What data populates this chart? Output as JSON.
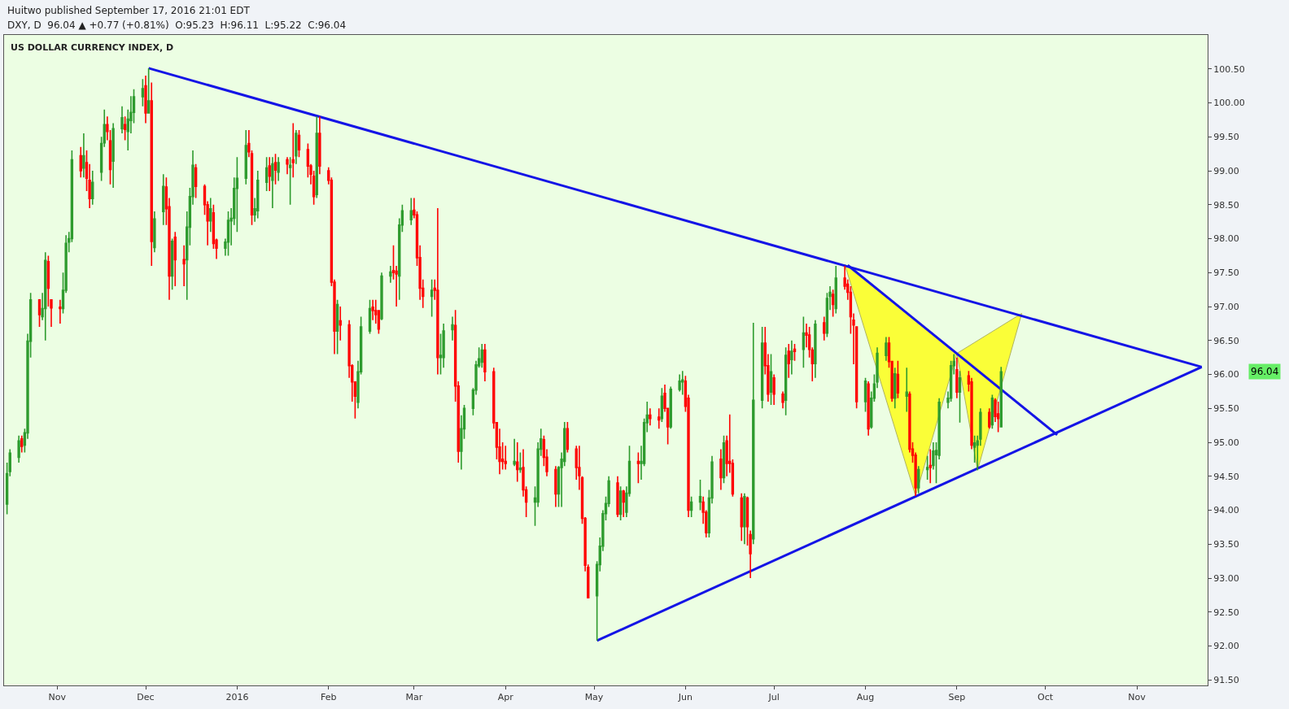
{
  "chart_data": {
    "type": "candlestick",
    "title": "US DOLLAR CURRENCY INDEX, D",
    "annotations": [
      "Huitwo published September 17, 2016 21:01 EDT",
      "DXY, D  96.04 ▲ +0.77 (+0.81%)  O:95.23  H:96.11  L:95.22  C:96.04",
      "96.04"
    ],
    "colors": [
      "#2e9b2e",
      "#2e9b2e",
      "#2e9b2e",
      "#ff0000",
      "#2e9b2e",
      "#2e9b2e",
      "#2e9b2e",
      "#ff0000",
      "#2e9b2e",
      "#2e9b2e",
      "#ff0000",
      "#ff0000",
      "#ff0000",
      "#2e9b2e",
      "#2e9b2e",
      "#2e9b2e",
      "#2e9b2e",
      "#ff0000",
      "#2e9b2e",
      "#ff0000",
      "#ff0000",
      "#2e9b2e",
      "#2e9b2e",
      "#2e9b2e",
      "#ff0000",
      "#ff0000",
      "#2e9b2e",
      "#2e9b2e",
      "#ff0000",
      "#2e9b2e",
      "#2e9b2e",
      "#2e9b2e",
      "#2e9b2e",
      "#ff0000",
      "#2e9b2e",
      "#ff0000",
      "#2e9b2e",
      "#2e9b2e",
      "#ff0000",
      "#ff0000",
      "#2e9b2e",
      "#ff0000",
      "#ff0000",
      "#2e9b2e",
      "#2e9b2e",
      "#2e9b2e",
      "#ff0000",
      "#ff0000",
      "#ff0000",
      "#2e9b2e",
      "#ff0000",
      "#ff0000",
      "#2e9b2e",
      "#2e9b2e",
      "#2e9b2e",
      "#2e9b2e",
      "#2e9b2e",
      "#2e9b2e",
      "#ff0000",
      "#ff0000",
      "#2e9b2e",
      "#2e9b2e",
      "#2e9b2e",
      "#ff0000",
      "#2e9b2e",
      "#ff0000",
      "#2e9b2e",
      "#ff0000",
      "#2e9b2e",
      "#ff0000",
      "#2e9b2e",
      "#ff0000",
      "#ff0000",
      "#ff0000",
      "#ff0000",
      "#2e9b2e",
      "#ff0000",
      "#ff0000",
      "#ff0000",
      "#ff0000",
      "#2e9b2e",
      "#ff0000",
      "#ff0000",
      "#ff0000",
      "#ff0000",
      "#2e9b2e",
      "#2e9b2e",
      "#2e9b2e",
      "#ff0000",
      "#ff0000",
      "#ff0000",
      "#2e9b2e",
      "#2e9b2e",
      "#ff0000",
      "#ff0000",
      "#2e9b2e",
      "#2e9b2e",
      "#2e9b2e",
      "#ff0000",
      "#ff0000",
      "#ff0000",
      "#ff0000",
      "#2e9b2e",
      "#ff0000",
      "#ff0000",
      "#2e9b2e",
      "#2e9b2e",
      "#2e9b2e",
      "#ff0000",
      "#ff0000",
      "#2e9b2e",
      "#2e9b2e",
      "#2e9b2e",
      "#2e9b2e",
      "#2e9b2e",
      "#2e9b2e",
      "#ff0000",
      "#ff0000",
      "#ff0000",
      "#ff0000",
      "#ff0000",
      "#ff0000",
      "#2e9b2e",
      "#ff0000",
      "#2e9b2e",
      "#ff0000",
      "#ff0000",
      "#2e9b2e",
      "#2e9b2e",
      "#2e9b2e",
      "#ff0000",
      "#ff0000",
      "#ff0000",
      "#2e9b2e",
      "#2e9b2e",
      "#2e9b2e",
      "#ff0000",
      "#ff0000",
      "#ff0000",
      "#ff0000",
      "#ff0000",
      "#ff0000",
      "#2e9b2e",
      "#2e9b2e",
      "#2e9b2e",
      "#2e9b2e",
      "#2e9b2e",
      "#ff0000",
      "#2e9b2e",
      "#ff0000",
      "#2e9b2e",
      "#2e9b2e",
      "#ff0000",
      "#2e9b2e",
      "#2e9b2e",
      "#2e9b2e",
      "#ff0000",
      "#ff0000",
      "#2e9b2e",
      "#ff0000",
      "#ff0000",
      "#2e9b2e",
      "#2e9b2e",
      "#2e9b2e",
      "#ff0000",
      "#ff0000",
      "#2e9b2e",
      "#2e9b2e",
      "#ff0000",
      "#ff0000",
      "#2e9b2e",
      "#2e9b2e",
      "#ff0000",
      "#2e9b2e",
      "#ff0000",
      "#ff0000",
      "#ff0000",
      "#ff0000",
      "#2e9b2e",
      "#ff0000",
      "#ff0000",
      "#2e9b2e",
      "#2e9b2e",
      "#ff0000",
      "#ff0000",
      "#2e9b2e",
      "#ff0000",
      "#ff0000",
      "#2e9b2e",
      "#ff0000",
      "#2e9b2e",
      "#ff0000",
      "#2e9b2e",
      "#ff0000",
      "#ff0000",
      "#ff0000",
      "#2e9b2e",
      "#ff0000",
      "#2e9b2e",
      "#2e9b2e",
      "#ff0000",
      "#2e9b2e",
      "#ff0000",
      "#ff0000",
      "#ff0000",
      "#ff0000",
      "#ff0000",
      "#2e9b2e",
      "#ff0000",
      "#2e9b2e",
      "#2e9b2e",
      "#2e9b2e",
      "#2e9b2e",
      "#ff0000",
      "#ff0000",
      "#2e9b2e",
      "#ff0000",
      "#2e9b2e",
      "#ff0000",
      "#ff0000",
      "#ff0000",
      "#2e9b2e",
      "#2e9b2e",
      "#ff0000",
      "#2e9b2e",
      "#2e9b2e",
      "#2e9b2e",
      "#2e9b2e",
      "#2e9b2e",
      "#2e9b2e",
      "#ff0000",
      "#2e9b2e",
      "#ff0000",
      "#ff0000",
      "#2e9b2e",
      "#2e9b2e",
      "#2e9b2e",
      "#ff0000",
      "#2e9b2e",
      "#ff0000",
      "#ff0000",
      "#2e9b2e"
    ],
    "x": [
      "2015-10-15",
      "2015-10-16",
      "2015-10-19",
      "2015-10-20",
      "2015-10-21",
      "2015-10-22",
      "2015-10-23",
      "2015-10-26",
      "2015-10-27",
      "2015-10-28",
      "2015-10-29",
      "2015-10-30",
      "2015-11-02",
      "2015-11-03",
      "2015-11-04",
      "2015-11-05",
      "2015-11-06",
      "2015-11-09",
      "2015-11-10",
      "2015-11-11",
      "2015-11-12",
      "2015-11-13",
      "2015-11-16",
      "2015-11-17",
      "2015-11-18",
      "2015-11-19",
      "2015-11-20",
      "2015-11-23",
      "2015-11-24",
      "2015-11-25",
      "2015-11-26",
      "2015-11-27",
      "2015-11-30",
      "2015-12-01",
      "2015-12-02",
      "2015-12-03",
      "2015-12-04",
      "2015-12-07",
      "2015-12-08",
      "2015-12-09",
      "2015-12-10",
      "2015-12-11",
      "2015-12-14",
      "2015-12-15",
      "2015-12-16",
      "2015-12-17",
      "2015-12-18",
      "2015-12-21",
      "2015-12-22",
      "2015-12-23",
      "2015-12-24",
      "2015-12-25",
      "2015-12-28",
      "2015-12-29",
      "2015-12-30",
      "2015-12-31",
      "2016-01-01",
      "2016-01-04",
      "2016-01-05",
      "2016-01-06",
      "2016-01-07",
      "2016-01-08",
      "2016-01-11",
      "2016-01-12",
      "2016-01-13",
      "2016-01-14",
      "2016-01-15",
      "2016-01-18",
      "2016-01-19",
      "2016-01-20",
      "2016-01-21",
      "2016-01-22",
      "2016-01-25",
      "2016-01-26",
      "2016-01-27",
      "2016-01-28",
      "2016-01-29",
      "2016-02-01",
      "2016-02-02",
      "2016-02-03",
      "2016-02-04",
      "2016-02-05",
      "2016-02-08",
      "2016-02-09",
      "2016-02-10",
      "2016-02-11",
      "2016-02-12",
      "2016-02-15",
      "2016-02-16",
      "2016-02-17",
      "2016-02-18",
      "2016-02-19",
      "2016-02-22",
      "2016-02-23",
      "2016-02-24",
      "2016-02-25",
      "2016-02-26",
      "2016-02-29",
      "2016-03-01",
      "2016-03-02",
      "2016-03-03",
      "2016-03-04",
      "2016-03-07",
      "2016-03-08",
      "2016-03-09",
      "2016-03-10",
      "2016-03-11",
      "2016-03-14",
      "2016-03-15",
      "2016-03-16",
      "2016-03-17",
      "2016-03-18",
      "2016-03-21",
      "2016-03-22",
      "2016-03-23",
      "2016-03-24",
      "2016-03-25",
      "2016-03-28",
      "2016-03-29",
      "2016-03-30",
      "2016-03-31",
      "2016-04-01",
      "2016-04-04",
      "2016-04-05",
      "2016-04-06",
      "2016-04-07",
      "2016-04-08",
      "2016-04-11",
      "2016-04-12",
      "2016-04-13",
      "2016-04-14",
      "2016-04-15",
      "2016-04-18",
      "2016-04-19",
      "2016-04-20",
      "2016-04-21",
      "2016-04-22",
      "2016-04-25",
      "2016-04-26",
      "2016-04-27",
      "2016-04-28",
      "2016-04-29",
      "2016-05-02",
      "2016-05-03",
      "2016-05-04",
      "2016-05-05",
      "2016-05-06",
      "2016-05-09",
      "2016-05-10",
      "2016-05-11",
      "2016-05-12",
      "2016-05-13",
      "2016-05-16",
      "2016-05-17",
      "2016-05-18",
      "2016-05-19",
      "2016-05-20",
      "2016-05-23",
      "2016-05-24",
      "2016-05-25",
      "2016-05-26",
      "2016-05-27",
      "2016-05-30",
      "2016-05-31",
      "2016-06-01",
      "2016-06-02",
      "2016-06-03",
      "2016-06-06",
      "2016-06-07",
      "2016-06-08",
      "2016-06-09",
      "2016-06-10",
      "2016-06-13",
      "2016-06-14",
      "2016-06-15",
      "2016-06-16",
      "2016-06-17",
      "2016-06-20",
      "2016-06-21",
      "2016-06-22",
      "2016-06-23",
      "2016-06-24",
      "2016-06-27",
      "2016-06-28",
      "2016-06-29",
      "2016-06-30",
      "2016-07-01",
      "2016-07-04",
      "2016-07-05",
      "2016-07-06",
      "2016-07-07",
      "2016-07-08",
      "2016-07-11",
      "2016-07-12",
      "2016-07-13",
      "2016-07-14",
      "2016-07-15",
      "2016-07-18",
      "2016-07-19",
      "2016-07-20",
      "2016-07-21",
      "2016-07-22",
      "2016-07-25",
      "2016-07-26",
      "2016-07-27",
      "2016-07-28",
      "2016-07-29",
      "2016-08-01",
      "2016-08-02",
      "2016-08-03",
      "2016-08-04",
      "2016-08-05",
      "2016-08-08",
      "2016-08-09",
      "2016-08-10",
      "2016-08-11",
      "2016-08-12",
      "2016-08-15",
      "2016-08-16",
      "2016-08-17",
      "2016-08-18",
      "2016-08-19",
      "2016-08-22",
      "2016-08-23",
      "2016-08-24",
      "2016-08-25",
      "2016-08-26",
      "2016-08-29",
      "2016-08-30",
      "2016-08-31",
      "2016-09-01",
      "2016-09-02",
      "2016-09-05",
      "2016-09-06",
      "2016-09-07",
      "2016-09-08",
      "2016-09-09",
      "2016-09-12",
      "2016-09-13",
      "2016-09-14",
      "2016-09-15",
      "2016-09-16"
    ],
    "ohlc": [
      [
        94.09,
        94.7,
        93.94,
        94.54
      ],
      [
        94.57,
        94.9,
        94.5,
        94.84
      ],
      [
        94.78,
        95.1,
        94.7,
        95.02
      ],
      [
        95.05,
        95.1,
        94.85,
        94.94
      ],
      [
        94.96,
        95.2,
        94.85,
        95.14
      ],
      [
        95.14,
        96.6,
        95.05,
        96.49
      ],
      [
        96.49,
        97.2,
        96.25,
        97.1
      ],
      [
        97.1,
        97.1,
        96.7,
        96.88
      ],
      [
        96.85,
        97.2,
        96.8,
        96.97
      ],
      [
        96.97,
        97.8,
        96.5,
        97.68
      ],
      [
        97.66,
        97.75,
        97.0,
        97.27
      ],
      [
        97.1,
        97.1,
        96.7,
        96.98
      ],
      [
        96.99,
        97.1,
        96.75,
        96.97
      ],
      [
        96.97,
        97.5,
        96.9,
        97.24
      ],
      [
        97.24,
        98.05,
        97.2,
        97.93
      ],
      [
        97.95,
        98.1,
        97.8,
        98.0
      ],
      [
        98.0,
        99.3,
        97.95,
        99.16
      ],
      [
        99.22,
        99.35,
        98.9,
        99.0
      ],
      [
        99.04,
        99.55,
        98.9,
        99.22
      ],
      [
        99.12,
        99.3,
        98.7,
        98.89
      ],
      [
        98.86,
        99.1,
        98.45,
        98.59
      ],
      [
        98.59,
        99.0,
        98.5,
        98.83
      ],
      [
        98.98,
        99.5,
        98.85,
        99.4
      ],
      [
        99.41,
        99.9,
        99.35,
        99.68
      ],
      [
        99.68,
        99.8,
        99.45,
        99.58
      ],
      [
        99.44,
        99.6,
        98.8,
        99.02
      ],
      [
        99.14,
        99.7,
        98.75,
        99.62
      ],
      [
        99.62,
        99.95,
        99.55,
        99.78
      ],
      [
        99.68,
        99.8,
        99.45,
        99.61
      ],
      [
        99.58,
        99.9,
        99.3,
        99.76
      ],
      [
        99.74,
        100.1,
        99.55,
        99.86
      ],
      [
        99.86,
        100.2,
        99.7,
        100.09
      ],
      [
        100.09,
        100.35,
        99.95,
        100.21
      ],
      [
        100.25,
        100.4,
        99.7,
        99.85
      ],
      [
        99.85,
        100.51,
        99.85,
        100.03
      ],
      [
        100.03,
        100.3,
        97.6,
        97.96
      ],
      [
        97.87,
        98.4,
        97.8,
        98.29
      ],
      [
        98.4,
        98.95,
        98.2,
        98.77
      ],
      [
        98.76,
        98.9,
        98.2,
        98.44
      ],
      [
        98.47,
        98.6,
        97.1,
        97.45
      ],
      [
        97.45,
        98.0,
        97.25,
        97.96
      ],
      [
        98.02,
        98.1,
        97.3,
        97.69
      ],
      [
        97.69,
        97.9,
        97.3,
        97.63
      ],
      [
        97.69,
        98.4,
        97.1,
        98.17
      ],
      [
        98.17,
        98.75,
        97.9,
        98.62
      ],
      [
        98.62,
        99.3,
        98.5,
        99.08
      ],
      [
        99.04,
        99.1,
        98.6,
        98.77
      ],
      [
        98.77,
        98.8,
        98.35,
        98.5
      ],
      [
        98.5,
        98.55,
        97.9,
        98.26
      ],
      [
        98.26,
        98.6,
        98.1,
        98.44
      ],
      [
        98.38,
        98.5,
        97.85,
        97.93
      ],
      [
        97.98,
        98.0,
        97.7,
        97.86
      ],
      [
        97.86,
        98.0,
        97.75,
        97.95
      ],
      [
        97.95,
        98.4,
        97.75,
        98.27
      ],
      [
        98.26,
        98.45,
        97.9,
        98.3
      ],
      [
        98.3,
        98.9,
        98.2,
        98.74
      ],
      [
        98.74,
        99.2,
        98.1,
        98.89
      ],
      [
        98.89,
        99.6,
        98.8,
        99.37
      ],
      [
        99.4,
        99.6,
        99.2,
        99.28
      ],
      [
        99.25,
        99.3,
        98.2,
        98.35
      ],
      [
        98.35,
        98.6,
        98.25,
        98.44
      ],
      [
        98.41,
        99.0,
        98.3,
        98.86
      ],
      [
        98.83,
        99.2,
        98.7,
        99.04
      ],
      [
        99.07,
        99.2,
        98.7,
        98.92
      ],
      [
        98.86,
        99.2,
        98.45,
        99.1
      ],
      [
        99.12,
        99.25,
        98.8,
        99.01
      ],
      [
        98.98,
        99.2,
        98.85,
        99.12
      ],
      [
        99.16,
        99.2,
        98.95,
        99.1
      ],
      [
        99.05,
        99.2,
        98.5,
        99.08
      ],
      [
        99.16,
        99.7,
        98.9,
        99.12
      ],
      [
        99.22,
        99.6,
        99.1,
        99.55
      ],
      [
        99.52,
        99.6,
        99.2,
        99.31
      ],
      [
        99.31,
        99.4,
        98.9,
        99.07
      ],
      [
        99.07,
        99.1,
        98.8,
        98.95
      ],
      [
        98.92,
        99.0,
        98.5,
        98.62
      ],
      [
        98.65,
        99.8,
        98.6,
        99.55
      ],
      [
        99.55,
        99.8,
        98.95,
        99.07
      ],
      [
        99.0,
        99.05,
        98.8,
        98.86
      ],
      [
        98.86,
        98.9,
        97.3,
        97.36
      ],
      [
        97.36,
        97.4,
        96.3,
        96.64
      ],
      [
        96.64,
        97.1,
        96.3,
        97.03
      ],
      [
        96.79,
        97.0,
        96.5,
        96.73
      ],
      [
        96.73,
        96.8,
        95.95,
        96.13
      ],
      [
        96.13,
        96.15,
        95.6,
        95.89
      ],
      [
        95.89,
        95.9,
        95.35,
        95.68
      ],
      [
        95.59,
        96.2,
        95.5,
        96.04
      ],
      [
        96.04,
        96.85,
        96.0,
        96.7
      ],
      [
        96.64,
        97.1,
        96.6,
        96.97
      ],
      [
        96.99,
        97.1,
        96.8,
        96.94
      ],
      [
        96.94,
        97.1,
        96.75,
        96.88
      ],
      [
        96.94,
        96.95,
        96.6,
        96.67
      ],
      [
        96.82,
        97.5,
        96.8,
        97.45
      ],
      [
        97.45,
        97.6,
        97.35,
        97.51
      ],
      [
        97.53,
        97.9,
        97.4,
        97.5
      ],
      [
        97.52,
        97.6,
        97.0,
        97.48
      ],
      [
        97.45,
        98.3,
        97.1,
        98.2
      ],
      [
        98.2,
        98.5,
        98.1,
        98.41
      ],
      [
        98.28,
        98.6,
        98.2,
        98.41
      ],
      [
        98.42,
        98.6,
        98.3,
        98.35
      ],
      [
        98.35,
        98.4,
        97.6,
        97.72
      ],
      [
        97.72,
        97.9,
        97.1,
        97.27
      ],
      [
        97.27,
        97.4,
        96.98,
        97.15
      ],
      [
        97.15,
        97.4,
        96.85,
        97.24
      ],
      [
        97.27,
        97.4,
        97.1,
        97.24
      ],
      [
        97.24,
        98.45,
        96.0,
        96.25
      ],
      [
        96.25,
        96.6,
        96.0,
        96.28
      ],
      [
        96.25,
        96.75,
        96.1,
        96.64
      ],
      [
        96.66,
        96.85,
        96.5,
        96.73
      ],
      [
        96.72,
        96.95,
        95.6,
        95.83
      ],
      [
        95.83,
        95.9,
        94.7,
        94.87
      ],
      [
        94.87,
        95.4,
        94.6,
        95.2
      ],
      [
        95.2,
        95.55,
        95.05,
        95.5
      ],
      [
        95.5,
        95.8,
        95.4,
        95.77
      ],
      [
        95.77,
        96.2,
        95.7,
        96.14
      ],
      [
        96.13,
        96.4,
        96.1,
        96.23
      ],
      [
        96.18,
        96.45,
        96.1,
        96.36
      ],
      [
        96.36,
        96.45,
        95.9,
        96.04
      ],
      [
        96.04,
        96.1,
        95.2,
        95.29
      ],
      [
        95.29,
        95.3,
        94.75,
        94.93
      ],
      [
        94.93,
        95.2,
        94.53,
        94.72
      ],
      [
        94.75,
        95.0,
        94.6,
        94.72
      ],
      [
        94.72,
        94.95,
        94.6,
        94.69
      ],
      [
        94.68,
        95.05,
        94.65,
        94.72
      ],
      [
        94.71,
        95.0,
        94.42,
        94.6
      ],
      [
        94.6,
        94.85,
        94.55,
        94.62
      ],
      [
        94.63,
        94.9,
        94.2,
        94.3
      ],
      [
        94.3,
        94.35,
        93.9,
        94.12
      ],
      [
        94.12,
        94.35,
        93.77,
        94.18
      ],
      [
        94.12,
        95.0,
        94.05,
        94.9
      ],
      [
        94.9,
        95.2,
        94.8,
        95.05
      ],
      [
        95.04,
        95.1,
        94.65,
        94.78
      ],
      [
        94.78,
        94.9,
        94.5,
        94.57
      ],
      [
        94.6,
        94.65,
        94.05,
        94.24
      ],
      [
        94.24,
        94.65,
        94.05,
        94.63
      ],
      [
        94.63,
        94.85,
        94.05,
        94.75
      ],
      [
        94.72,
        95.3,
        94.65,
        95.2
      ],
      [
        95.2,
        95.3,
        94.85,
        94.9
      ],
      [
        94.9,
        94.95,
        94.45,
        94.63
      ],
      [
        94.63,
        94.95,
        94.3,
        94.51
      ],
      [
        94.48,
        94.5,
        93.8,
        93.88
      ],
      [
        93.88,
        93.9,
        93.1,
        93.19
      ],
      [
        93.16,
        93.2,
        92.7,
        92.71
      ],
      [
        92.74,
        93.25,
        92.08,
        93.2
      ],
      [
        93.2,
        93.6,
        93.1,
        93.47
      ],
      [
        93.47,
        94.0,
        93.4,
        93.95
      ],
      [
        93.95,
        94.2,
        93.85,
        94.1
      ],
      [
        94.1,
        94.5,
        94.05,
        94.43
      ],
      [
        94.4,
        94.5,
        93.9,
        93.94
      ],
      [
        93.94,
        94.35,
        93.85,
        94.28
      ],
      [
        94.28,
        94.3,
        93.9,
        94.12
      ],
      [
        93.97,
        94.35,
        93.9,
        94.25
      ],
      [
        94.25,
        94.95,
        94.2,
        94.72
      ],
      [
        94.72,
        94.85,
        94.4,
        94.69
      ],
      [
        94.69,
        94.95,
        94.45,
        94.72
      ],
      [
        94.69,
        95.35,
        94.65,
        95.29
      ],
      [
        95.29,
        95.6,
        95.15,
        95.4
      ],
      [
        95.4,
        95.5,
        95.25,
        95.35
      ],
      [
        95.37,
        95.5,
        95.2,
        95.33
      ],
      [
        95.35,
        95.8,
        95.3,
        95.68
      ],
      [
        95.72,
        95.85,
        95.45,
        95.5
      ],
      [
        95.5,
        95.5,
        94.97,
        95.23
      ],
      [
        95.23,
        95.82,
        95.2,
        95.78
      ],
      [
        95.78,
        96.0,
        95.75,
        95.9
      ],
      [
        95.89,
        96.05,
        95.7,
        95.92
      ],
      [
        95.9,
        95.98,
        95.45,
        95.53
      ],
      [
        95.65,
        95.7,
        93.9,
        94.0
      ],
      [
        94.0,
        94.2,
        93.9,
        94.12
      ],
      [
        94.12,
        94.45,
        94.0,
        94.2
      ],
      [
        94.12,
        94.2,
        93.8,
        93.97
      ],
      [
        93.97,
        94.0,
        93.6,
        93.67
      ],
      [
        93.67,
        94.3,
        93.6,
        94.18
      ],
      [
        94.18,
        94.8,
        94.1,
        94.71
      ],
      [
        94.75,
        94.9,
        94.3,
        94.48
      ],
      [
        94.48,
        95.1,
        94.4,
        94.99
      ],
      [
        95.02,
        95.1,
        94.5,
        94.69
      ],
      [
        94.72,
        95.41,
        94.55,
        94.69
      ],
      [
        94.69,
        94.75,
        94.2,
        94.24
      ],
      [
        94.18,
        94.25,
        93.55,
        93.76
      ],
      [
        93.76,
        94.25,
        93.5,
        94.2
      ],
      [
        94.18,
        94.2,
        93.48,
        93.76
      ],
      [
        93.64,
        93.7,
        93.0,
        93.36
      ],
      [
        93.58,
        96.76,
        93.5,
        95.62
      ],
      [
        95.62,
        96.7,
        95.5,
        96.46
      ],
      [
        96.46,
        96.7,
        96.0,
        96.13
      ],
      [
        96.13,
        96.3,
        95.6,
        95.71
      ],
      [
        95.74,
        96.3,
        95.55,
        96.04
      ],
      [
        95.95,
        96.0,
        95.55,
        95.71
      ],
      [
        95.71,
        95.75,
        95.5,
        95.59
      ],
      [
        95.62,
        96.4,
        95.4,
        96.28
      ],
      [
        96.34,
        96.45,
        95.95,
        96.16
      ],
      [
        96.22,
        96.5,
        96.0,
        96.34
      ],
      [
        96.37,
        96.45,
        96.2,
        96.34
      ],
      [
        96.37,
        96.85,
        96.1,
        96.61
      ],
      [
        96.61,
        96.75,
        96.4,
        96.58
      ],
      [
        96.58,
        96.7,
        96.25,
        96.37
      ],
      [
        96.36,
        96.4,
        95.9,
        96.16
      ],
      [
        96.16,
        96.8,
        95.95,
        96.74
      ],
      [
        96.76,
        96.85,
        96.5,
        96.61
      ],
      [
        96.61,
        97.2,
        96.55,
        97.12
      ],
      [
        97.15,
        97.3,
        96.95,
        97.21
      ],
      [
        97.18,
        97.25,
        96.85,
        97.03
      ],
      [
        96.97,
        97.6,
        96.9,
        97.42
      ],
      [
        97.42,
        97.6,
        97.25,
        97.3
      ],
      [
        97.33,
        97.4,
        97.1,
        97.21
      ],
      [
        97.21,
        97.3,
        96.6,
        96.85
      ],
      [
        96.8,
        96.9,
        96.15,
        96.73
      ],
      [
        96.7,
        96.7,
        95.5,
        95.6
      ],
      [
        95.6,
        95.95,
        95.45,
        95.9
      ],
      [
        95.86,
        95.9,
        95.1,
        95.2
      ],
      [
        95.23,
        95.75,
        95.2,
        95.65
      ],
      [
        95.65,
        96.0,
        95.6,
        95.86
      ],
      [
        95.89,
        96.4,
        95.8,
        96.31
      ],
      [
        96.28,
        96.55,
        96.2,
        96.46
      ],
      [
        96.46,
        96.55,
        96.1,
        96.19
      ],
      [
        96.19,
        96.2,
        95.6,
        95.65
      ],
      [
        95.65,
        96.1,
        95.5,
        96.01
      ],
      [
        96.0,
        96.2,
        95.65,
        95.73
      ],
      [
        95.68,
        96.1,
        95.45,
        95.74
      ],
      [
        95.71,
        95.75,
        94.85,
        94.9
      ],
      [
        94.9,
        95.0,
        94.7,
        94.81
      ],
      [
        94.81,
        94.85,
        94.21,
        94.33
      ],
      [
        94.33,
        94.65,
        94.25,
        94.6
      ],
      [
        94.6,
        94.8,
        94.45,
        94.63
      ],
      [
        94.66,
        94.9,
        94.4,
        94.63
      ],
      [
        94.66,
        95.0,
        94.6,
        94.87
      ],
      [
        94.82,
        95.0,
        94.4,
        94.88
      ],
      [
        94.81,
        95.65,
        94.75,
        95.59
      ],
      [
        95.59,
        95.75,
        95.5,
        95.65
      ],
      [
        95.65,
        96.2,
        95.6,
        96.13
      ],
      [
        96.13,
        96.3,
        96.0,
        96.19
      ],
      [
        96.07,
        96.25,
        95.65,
        95.74
      ],
      [
        95.74,
        96.05,
        95.29,
        95.95
      ],
      [
        95.98,
        96.05,
        95.75,
        95.86
      ],
      [
        95.89,
        95.95,
        94.9,
        94.96
      ],
      [
        94.93,
        95.1,
        94.7,
        94.99
      ],
      [
        94.96,
        95.1,
        94.59,
        95.02
      ],
      [
        95.05,
        95.5,
        94.95,
        95.44
      ],
      [
        95.44,
        95.5,
        95.2,
        95.23
      ],
      [
        95.26,
        95.7,
        95.2,
        95.65
      ],
      [
        95.62,
        95.65,
        95.3,
        95.38
      ],
      [
        95.42,
        95.6,
        95.15,
        95.35
      ],
      [
        95.23,
        96.11,
        95.22,
        96.04
      ]
    ],
    "series": [
      {
        "type": "area",
        "color": "#ffff00",
        "x": [
          "2016-07-25",
          "2016-08-18",
          "2016-09-01",
          "2016-07-25"
        ],
        "values": [
          97.62,
          94.21,
          96.31,
          97.62
        ]
      },
      {
        "type": "area",
        "color": "#ffff00",
        "x": [
          "2016-09-01",
          "2016-09-08",
          "2016-09-23",
          "2016-09-01"
        ],
        "values": [
          96.31,
          94.59,
          96.9,
          96.31
        ]
      },
      {
        "type": "line",
        "color": "#1414e6",
        "x": [
          "2015-12-02",
          "2016-11-23"
        ],
        "values": [
          100.51,
          96.11
        ]
      },
      {
        "type": "line",
        "color": "#1414e6",
        "x": [
          "2016-05-02",
          "2016-11-23"
        ],
        "values": [
          92.08,
          96.11
        ]
      },
      {
        "type": "line",
        "color": "#1414e6",
        "x": [
          "2016-07-26",
          "2016-10-05"
        ],
        "values": [
          97.61,
          95.11
        ]
      }
    ],
    "xlim": [
      "2015-10-14",
      "2016-11-25"
    ],
    "xticks": [
      {
        "value": "2015-11",
        "label": "Nov"
      },
      {
        "value": "2015-12",
        "label": "Dec"
      },
      {
        "value": "2016-01",
        "label": "2016"
      },
      {
        "value": "2016-02",
        "label": "Feb"
      },
      {
        "value": "2016-03",
        "label": "Mar"
      },
      {
        "value": "2016-04",
        "label": "Apr"
      },
      {
        "value": "2016-05",
        "label": "May"
      },
      {
        "value": "2016-06",
        "label": "Jun"
      },
      {
        "value": "2016-07",
        "label": "Jul"
      },
      {
        "value": "2016-08",
        "label": "Aug"
      },
      {
        "value": "2016-09",
        "label": "Sep"
      },
      {
        "value": "2016-10",
        "label": "Oct"
      },
      {
        "value": "2016-11",
        "label": "Nov"
      }
    ],
    "ylim": [
      91.42,
      101.0
    ],
    "yticks": [
      {
        "value": 91.5,
        "label": "91.50"
      },
      {
        "value": 92,
        "label": "92.00"
      },
      {
        "value": 92.5,
        "label": "92.50"
      },
      {
        "value": 93,
        "label": "93.00"
      },
      {
        "value": 93.5,
        "label": "93.50"
      },
      {
        "value": 94,
        "label": "94.00"
      },
      {
        "value": 94.5,
        "label": "94.50"
      },
      {
        "value": 95,
        "label": "95.00"
      },
      {
        "value": 95.5,
        "label": "95.50"
      },
      {
        "value": 96,
        "label": "96.00"
      },
      {
        "value": 96.5,
        "label": "96.50"
      },
      {
        "value": 97,
        "label": "97.00"
      },
      {
        "value": 97.5,
        "label": "97.50"
      },
      {
        "value": 98,
        "label": "98.00"
      },
      {
        "value": 98.5,
        "label": "98.50"
      },
      {
        "value": 99,
        "label": "99.00"
      },
      {
        "value": 99.5,
        "label": "99.50"
      },
      {
        "value": 100,
        "label": "100.00"
      },
      {
        "value": 100.5,
        "label": "100.50"
      }
    ]
  }
}
